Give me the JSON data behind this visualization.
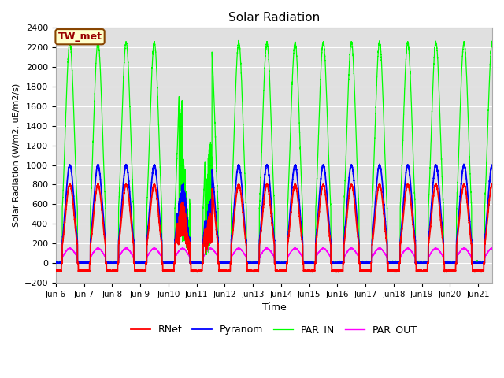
{
  "title": "Solar Radiation",
  "ylabel": "Solar Radiation (W/m2, uE/m2/s)",
  "xlabel": "Time",
  "ylim": [
    -200,
    2400
  ],
  "yticks": [
    -200,
    0,
    200,
    400,
    600,
    800,
    1000,
    1200,
    1400,
    1600,
    1800,
    2000,
    2200,
    2400
  ],
  "start_day": 5.0,
  "end_day": 20.5,
  "n_points": 7200,
  "background_color": "#e0e0e0",
  "colors": {
    "RNet": "#ff0000",
    "Pyranom": "#0000ff",
    "PAR_IN": "#00ff00",
    "PAR_OUT": "#ff00ff"
  },
  "station_label": "TW_met",
  "station_label_bg": "#ffffcc",
  "station_label_border": "#884400"
}
